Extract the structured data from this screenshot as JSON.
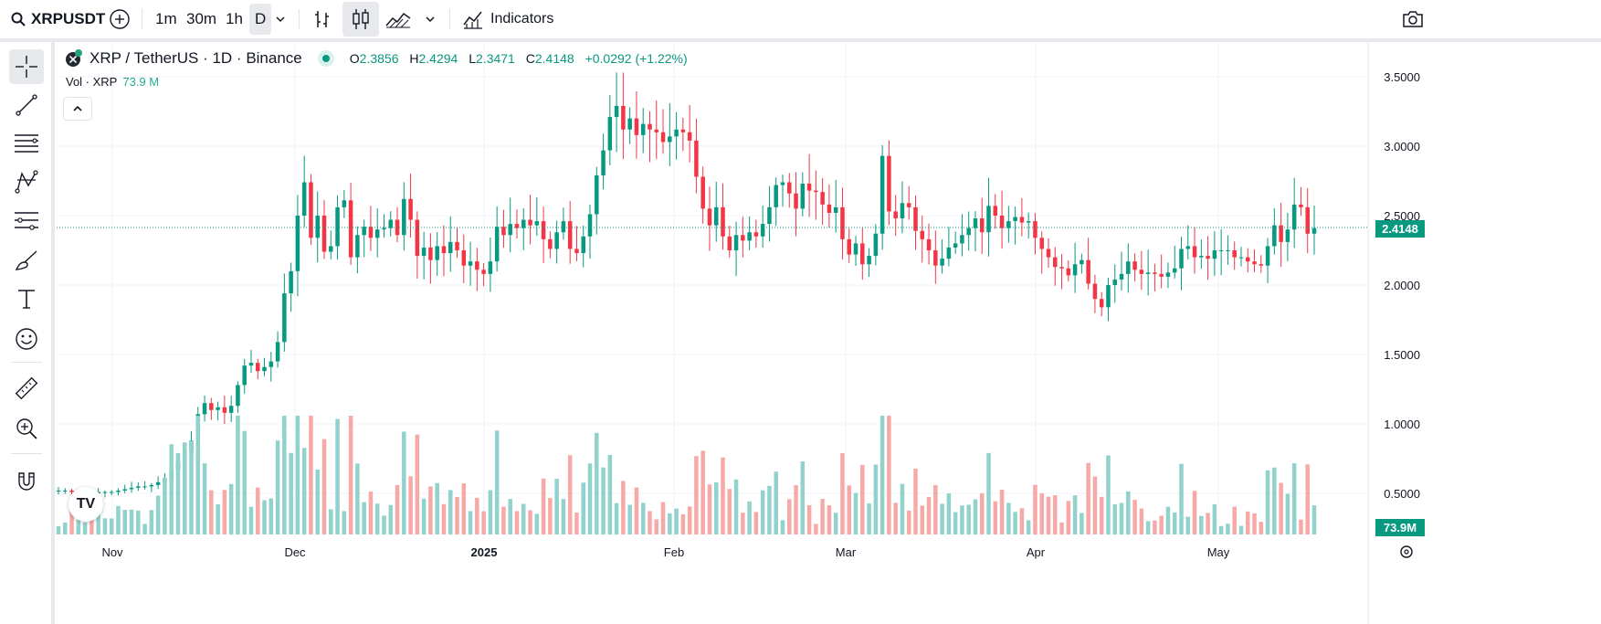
{
  "toolbar": {
    "symbol": "XRPUSDT",
    "intervals": [
      "1m",
      "30m",
      "1h",
      "D"
    ],
    "active_interval": "D",
    "indicators_label": "Indicators"
  },
  "legend": {
    "title": "XRP / TetherUS · 1D · Binance",
    "o_label": "O",
    "o_value": "2.3856",
    "h_label": "H",
    "h_value": "2.4294",
    "l_label": "L",
    "l_value": "2.3471",
    "c_label": "C",
    "c_value": "2.4148",
    "change": "+0.0292 (+1.22%)",
    "vol_label": "Vol · XRP",
    "vol_value": "73.9 M"
  },
  "price_axis": {
    "ticks": [
      "3.5000",
      "3.0000",
      "2.5000",
      "2.0000",
      "1.5000",
      "1.0000",
      "0.5000"
    ],
    "last_price": "2.4148",
    "last_volume": "73.9M"
  },
  "time_axis": {
    "labels": [
      {
        "text": "Nov",
        "bold": false
      },
      {
        "text": "Dec",
        "bold": false
      },
      {
        "text": "2025",
        "bold": true
      },
      {
        "text": "Feb",
        "bold": false
      },
      {
        "text": "Mar",
        "bold": false
      },
      {
        "text": "Apr",
        "bold": false
      },
      {
        "text": "May",
        "bold": false
      }
    ]
  },
  "colors": {
    "up": "#089981",
    "down": "#f23645",
    "vol_up": "#92d2cc",
    "vol_down": "#f7a9a7",
    "grid": "#f0f3fa"
  },
  "tools": [
    "crosshair-icon",
    "trendline-icon",
    "fib-icon",
    "pattern-icon",
    "forecast-icon",
    "brush-icon",
    "text-icon",
    "emoji-icon",
    "ruler-icon",
    "zoom-icon",
    "magnet-icon"
  ],
  "chart_data": {
    "type": "candlestick",
    "title": "XRP / TetherUS · 1D · Binance",
    "ylim": [
      0.35,
      3.65
    ],
    "x_labels": [
      "Nov",
      "Dec",
      "2025",
      "Feb",
      "Mar",
      "Apr",
      "May"
    ],
    "closes": [
      0.52,
      0.52,
      0.51,
      0.51,
      0.51,
      0.5,
      0.51,
      0.51,
      0.51,
      0.52,
      0.53,
      0.54,
      0.55,
      0.55,
      0.56,
      0.58,
      0.61,
      0.67,
      0.73,
      0.8,
      0.88,
      1.07,
      1.15,
      1.1,
      1.12,
      1.08,
      1.13,
      1.28,
      1.42,
      1.44,
      1.38,
      1.41,
      1.45,
      1.59,
      1.94,
      2.1,
      2.5,
      2.74,
      2.34,
      2.5,
      2.24,
      2.28,
      2.56,
      2.61,
      2.2,
      2.36,
      2.42,
      2.34,
      2.4,
      2.41,
      2.47,
      2.36,
      2.62,
      2.47,
      2.21,
      2.27,
      2.18,
      2.28,
      2.23,
      2.31,
      2.25,
      2.14,
      2.17,
      2.11,
      2.08,
      2.17,
      2.42,
      2.36,
      2.44,
      2.41,
      2.47,
      2.43,
      2.46,
      2.33,
      2.26,
      2.38,
      2.46,
      2.26,
      2.23,
      2.35,
      2.51,
      2.79,
      2.97,
      3.21,
      3.29,
      3.12,
      3.2,
      3.08,
      3.16,
      3.12,
      3.1,
      3.03,
      3.07,
      3.12,
      3.1,
      3.04,
      2.78,
      2.55,
      2.43,
      2.56,
      2.35,
      2.25,
      2.36,
      2.32,
      2.38,
      2.35,
      2.44,
      2.56,
      2.72,
      2.74,
      2.66,
      2.55,
      2.73,
      2.68,
      2.67,
      2.58,
      2.52,
      2.56,
      2.33,
      2.22,
      2.3,
      2.15,
      2.21,
      2.37,
      2.93,
      2.53,
      2.48,
      2.59,
      2.56,
      2.39,
      2.33,
      2.25,
      2.14,
      2.19,
      2.27,
      2.3,
      2.36,
      2.41,
      2.48,
      2.38,
      2.57,
      2.5,
      2.41,
      2.46,
      2.49,
      2.45,
      2.46,
      2.34,
      2.26,
      2.2,
      2.13,
      2.12,
      2.07,
      2.15,
      2.18,
      2.01,
      1.9,
      1.84,
      2.0,
      2.04,
      2.08,
      2.17,
      2.11,
      2.08,
      2.09,
      2.08,
      2.06,
      2.09,
      2.12,
      2.26,
      2.28,
      2.2,
      2.21,
      2.19,
      2.25,
      2.25,
      2.25,
      2.2,
      2.2,
      2.17,
      2.15,
      2.14,
      2.28,
      2.43,
      2.31,
      2.4,
      2.58,
      2.56,
      2.37,
      2.41
    ]
  }
}
